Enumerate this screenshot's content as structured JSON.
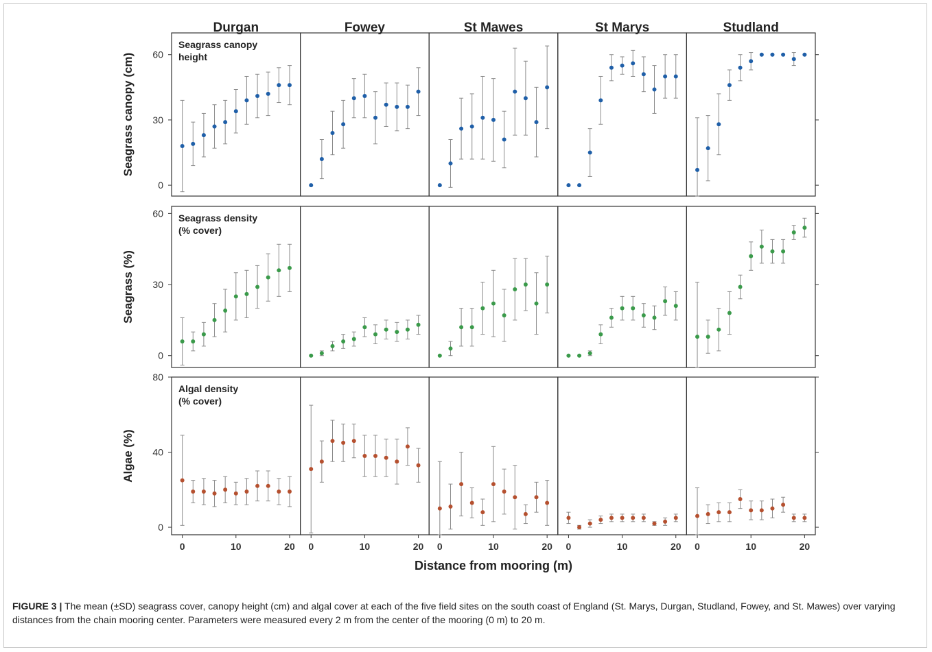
{
  "figure": {
    "caption_label": "FIGURE 3 |",
    "caption_text": " The mean (±SD) seagrass cover, canopy height (cm) and algal cover at each of the five field sites on the south coast of England (St. Marys, Durgan, Studland, Fowey, and St. Mawes) over varying distances from the chain mooring center. Parameters were measured every 2 m from the center of the mooring (0 m) to 20 m."
  },
  "colors": {
    "canopy": "#1f5fa8",
    "seagrass": "#3a9a4a",
    "algae": "#b5502f",
    "errorbar": "#8a8a8a",
    "axis": "#333333"
  },
  "chart_data": {
    "type": "scatter",
    "error_bars": "±SD",
    "sites": [
      "Durgan",
      "Fowey",
      "St Mawes",
      "St Marys",
      "Studland"
    ],
    "x": [
      0,
      2,
      4,
      6,
      8,
      10,
      12,
      14,
      16,
      18,
      20
    ],
    "xlabel": "Distance from mooring (m)",
    "xticks": [
      0,
      10,
      20
    ],
    "panels": [
      {
        "key": "canopy",
        "ylabel": "Seagrass canopy (cm)",
        "annotation": [
          "Seagrass canopy",
          "height"
        ],
        "ylim": [
          -5,
          70
        ],
        "yticks": [
          0,
          30,
          60
        ],
        "series": [
          {
            "site": "Durgan",
            "mean": [
              18,
              19,
              23,
              27,
              29,
              34,
              39,
              41,
              42,
              46,
              46
            ],
            "sd": [
              21,
              10,
              10,
              10,
              10,
              10,
              11,
              10,
              10,
              8,
              9
            ]
          },
          {
            "site": "Fowey",
            "mean": [
              0,
              12,
              24,
              28,
              40,
              41,
              31,
              37,
              36,
              36,
              43
            ],
            "sd": [
              0,
              9,
              10,
              11,
              9,
              10,
              12,
              10,
              11,
              10,
              11
            ]
          },
          {
            "site": "St Mawes",
            "mean": [
              0,
              10,
              26,
              27,
              31,
              30,
              21,
              43,
              40,
              29,
              45
            ],
            "sd": [
              0,
              11,
              14,
              15,
              19,
              19,
              13,
              20,
              17,
              16,
              19
            ]
          },
          {
            "site": "St Marys",
            "mean": [
              0,
              0,
              15,
              39,
              54,
              55,
              56,
              51,
              44,
              50,
              50
            ],
            "sd": [
              0,
              0,
              11,
              11,
              6,
              4,
              6,
              8,
              11,
              10,
              10
            ]
          },
          {
            "site": "Studland",
            "mean": [
              7,
              17,
              28,
              46,
              54,
              57,
              60,
              60,
              60,
              58,
              60
            ],
            "sd": [
              24,
              15,
              14,
              7,
              6,
              4,
              0,
              0,
              0,
              3,
              0
            ]
          }
        ]
      },
      {
        "key": "seagrass",
        "ylabel": "Seagrass (%)",
        "annotation": [
          "Seagrass density",
          "(% cover)"
        ],
        "ylim": [
          -5,
          63
        ],
        "yticks": [
          0,
          30,
          60
        ],
        "series": [
          {
            "site": "Durgan",
            "mean": [
              6,
              6,
              9,
              15,
              19,
              25,
              26,
              29,
              33,
              36,
              37
            ],
            "sd": [
              10,
              4,
              5,
              7,
              9,
              10,
              10,
              9,
              10,
              11,
              10
            ]
          },
          {
            "site": "Fowey",
            "mean": [
              0,
              1,
              4,
              6,
              7,
              12,
              9,
              11,
              10,
              11,
              13
            ],
            "sd": [
              0,
              1,
              2,
              3,
              3,
              4,
              4,
              4,
              4,
              4,
              4
            ]
          },
          {
            "site": "St Mawes",
            "mean": [
              0,
              3,
              12,
              12,
              20,
              22,
              17,
              28,
              30,
              22,
              30
            ],
            "sd": [
              0,
              3,
              8,
              8,
              11,
              14,
              11,
              13,
              11,
              13,
              12
            ]
          },
          {
            "site": "St Marys",
            "mean": [
              0,
              0,
              1,
              9,
              16,
              20,
              20,
              17,
              16,
              23,
              21
            ],
            "sd": [
              0,
              0,
              1,
              4,
              4,
              5,
              5,
              5,
              5,
              6,
              6
            ]
          },
          {
            "site": "Studland",
            "mean": [
              8,
              8,
              11,
              18,
              29,
              42,
              46,
              44,
              44,
              52,
              54
            ],
            "sd": [
              23,
              7,
              9,
              9,
              5,
              6,
              7,
              5,
              5,
              3,
              4
            ]
          }
        ]
      },
      {
        "key": "algae",
        "ylabel": "Algae (%)",
        "annotation": [
          "Algal density",
          "(% cover)"
        ],
        "yticks": [
          0,
          40,
          80
        ],
        "ylim": [
          -4,
          80
        ],
        "series": [
          {
            "site": "Durgan",
            "mean": [
              25,
              19,
              19,
              18,
              20,
              18,
              19,
              22,
              22,
              19,
              19
            ],
            "sd": [
              24,
              6,
              7,
              7,
              7,
              6,
              7,
              8,
              8,
              7,
              8
            ]
          },
          {
            "site": "Fowey",
            "mean": [
              31,
              35,
              46,
              45,
              46,
              38,
              38,
              37,
              35,
              43,
              33
            ],
            "sd": [
              34,
              11,
              11,
              10,
              9,
              11,
              11,
              10,
              12,
              10,
              9
            ]
          },
          {
            "site": "St Mawes",
            "mean": [
              10,
              11,
              23,
              13,
              8,
              23,
              19,
              16,
              7,
              16,
              13
            ],
            "sd": [
              25,
              12,
              17,
              8,
              7,
              20,
              12,
              17,
              5,
              8,
              12
            ]
          },
          {
            "site": "St Marys",
            "mean": [
              5,
              0,
              2,
              4,
              5,
              5,
              5,
              5,
              2,
              3,
              5
            ],
            "sd": [
              3,
              1,
              2,
              2,
              2,
              2,
              2,
              2,
              1,
              2,
              2
            ]
          },
          {
            "site": "Studland",
            "mean": [
              6,
              7,
              8,
              8,
              15,
              9,
              9,
              10,
              12,
              5,
              5
            ],
            "sd": [
              15,
              5,
              5,
              5,
              5,
              5,
              5,
              5,
              4,
              2,
              2
            ]
          }
        ]
      }
    ]
  }
}
